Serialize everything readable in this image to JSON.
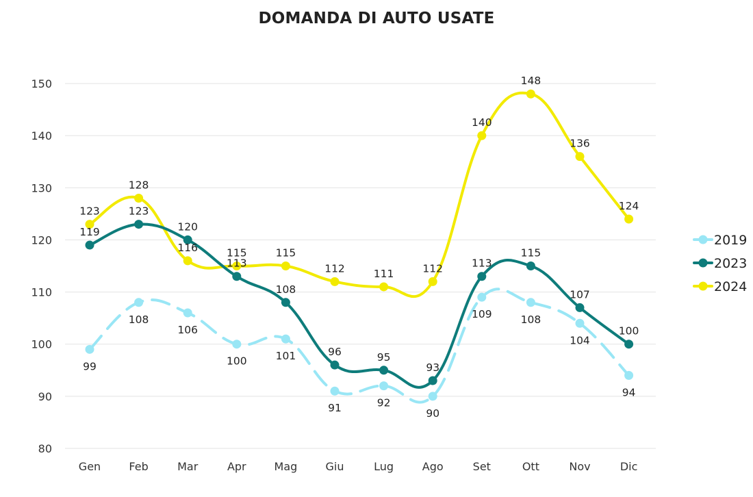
{
  "chart_data": {
    "type": "line",
    "title": "DOMANDA DI AUTO USATE",
    "xlabel": "",
    "ylabel": "",
    "categories": [
      "Gen",
      "Feb",
      "Mar",
      "Apr",
      "Mag",
      "Giu",
      "Lug",
      "Ago",
      "Set",
      "Ott",
      "Nov",
      "Dic"
    ],
    "ylim": [
      80,
      150
    ],
    "yticks": [
      80,
      90,
      100,
      110,
      120,
      130,
      140,
      150
    ],
    "grid": true,
    "legend_position": "right",
    "series": [
      {
        "name": "2019",
        "color": "#99E6F5",
        "dashed": true,
        "label_side": "below",
        "values": [
          99,
          108,
          106,
          100,
          101,
          91,
          92,
          90,
          109,
          108,
          104,
          94
        ]
      },
      {
        "name": "2023",
        "color": "#0E7C7B",
        "dashed": false,
        "label_side": "above",
        "values": [
          119,
          123,
          120,
          113,
          108,
          96,
          95,
          93,
          113,
          115,
          107,
          100
        ]
      },
      {
        "name": "2024",
        "color": "#F2EA00",
        "dashed": false,
        "label_side": "above",
        "values": [
          123,
          128,
          116,
          115,
          115,
          112,
          111,
          112,
          140,
          148,
          136,
          124
        ]
      }
    ]
  }
}
